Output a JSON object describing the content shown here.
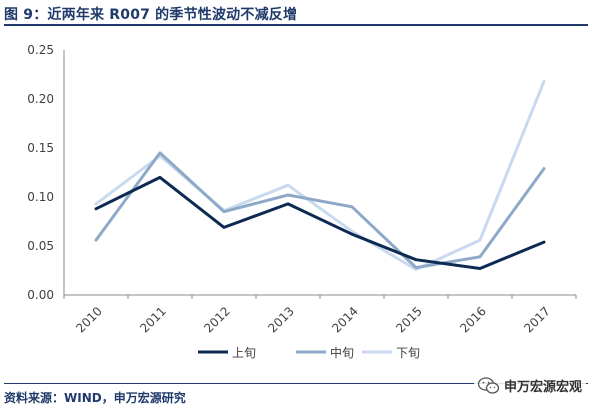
{
  "header": {
    "title": "图 9：近两年来 R007 的季节性波动不减反增"
  },
  "footer": {
    "source": "资料来源：WIND，申万宏源研究"
  },
  "watermark": {
    "text": "申万宏源宏观",
    "icon": "wechat-icon"
  },
  "colors": {
    "title": "#1f3a6b",
    "series": [
      "#0d2a52",
      "#8ea9c8",
      "#c9daf0"
    ]
  },
  "chart_data": {
    "type": "line",
    "x": [
      "2010",
      "2011",
      "2012",
      "2013",
      "2014",
      "2015",
      "2016",
      "2017"
    ],
    "ylim": [
      0,
      0.25
    ],
    "yticks": [
      "0.00",
      "0.05",
      "0.10",
      "0.15",
      "0.20",
      "0.25"
    ],
    "legend_position": "bottom",
    "series": [
      {
        "name": "上旬",
        "values": [
          0.088,
          0.12,
          0.069,
          0.093,
          0.062,
          0.036,
          0.027,
          0.054
        ]
      },
      {
        "name": "中旬",
        "values": [
          0.056,
          0.145,
          0.085,
          0.102,
          0.09,
          0.028,
          0.039,
          0.129
        ]
      },
      {
        "name": "下旬",
        "values": [
          0.093,
          0.142,
          0.086,
          0.112,
          0.065,
          0.026,
          0.056,
          0.218
        ]
      }
    ]
  }
}
